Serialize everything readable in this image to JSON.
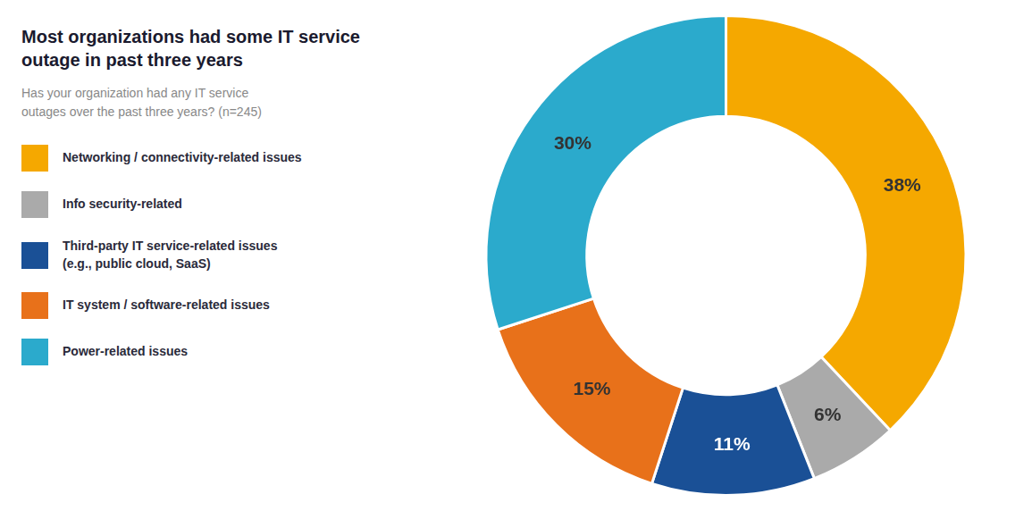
{
  "chart_data": {
    "type": "doughnut",
    "title": "Most organizations had some IT service outage in past three years",
    "subtitle": "Has your organization had any IT service\noutages over the past three years? (n=245)",
    "categories": [
      "Networking / connectivity-related issues",
      "Info security-related",
      "Third-party IT service-related issues\n(e.g., public cloud, SaaS)",
      "IT system / software-related issues",
      "Power-related issues"
    ],
    "values": [
      38,
      6,
      11,
      15,
      30
    ],
    "value_labels": [
      "38%",
      "6%",
      "11%",
      "15%",
      "30%"
    ],
    "colors": [
      "#F5A800",
      "#AAAAAA",
      "#1A5096",
      "#E8711A",
      "#2BAACC"
    ],
    "data_labels": true,
    "legend": "left"
  }
}
